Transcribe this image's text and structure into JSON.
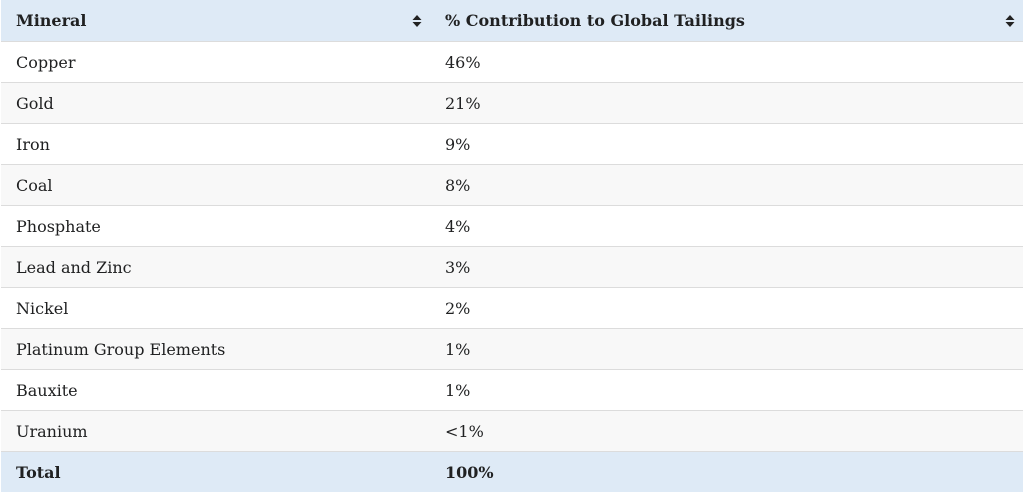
{
  "table": {
    "header": [
      "Mineral",
      "% Contribution to Global Tailings"
    ],
    "rows": [
      [
        "Copper",
        "46%"
      ],
      [
        "Gold",
        "21%"
      ],
      [
        "Iron",
        "9%"
      ],
      [
        "Coal",
        "8%"
      ],
      [
        "Phosphate",
        "4%"
      ],
      [
        "Lead and Zinc",
        "3%"
      ],
      [
        "Nickel",
        "2%"
      ],
      [
        "Platinum Group Elements",
        "1%"
      ],
      [
        "Bauxite",
        "1%"
      ],
      [
        "Uranium",
        "<1%"
      ]
    ],
    "footer": [
      "Total",
      "100%"
    ]
  }
}
